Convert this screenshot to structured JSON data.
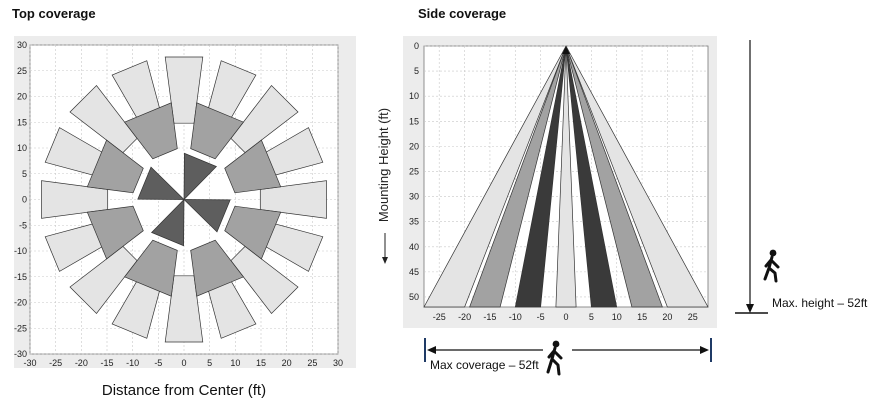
{
  "top": {
    "title": "Top coverage",
    "xlabel": "Distance from Center (ft)",
    "range": [
      -30,
      30
    ],
    "ticks": [
      -30,
      -25,
      -20,
      -15,
      -10,
      -5,
      0,
      5,
      10,
      15,
      20,
      25,
      30
    ]
  },
  "side": {
    "title": "Side coverage",
    "ylabel": "Mounting Height (ft)",
    "xticks": [
      -25,
      -20,
      -15,
      -10,
      -5,
      0,
      5,
      10,
      15,
      20,
      25
    ],
    "yticks": [
      0,
      5,
      10,
      15,
      20,
      25,
      30,
      35,
      40,
      45,
      50
    ],
    "max_height_label": "Max. height – 52ft",
    "max_coverage_label": "Max coverage – 52ft"
  },
  "colors": {
    "light": "#e4e4e4",
    "medium": "#a2a2a2",
    "dark": "#5e5e5e",
    "darkest": "#3a3a3a",
    "frame": "#ececec"
  },
  "icons": [
    "walking-person-icon",
    "arrow-down-icon"
  ]
}
